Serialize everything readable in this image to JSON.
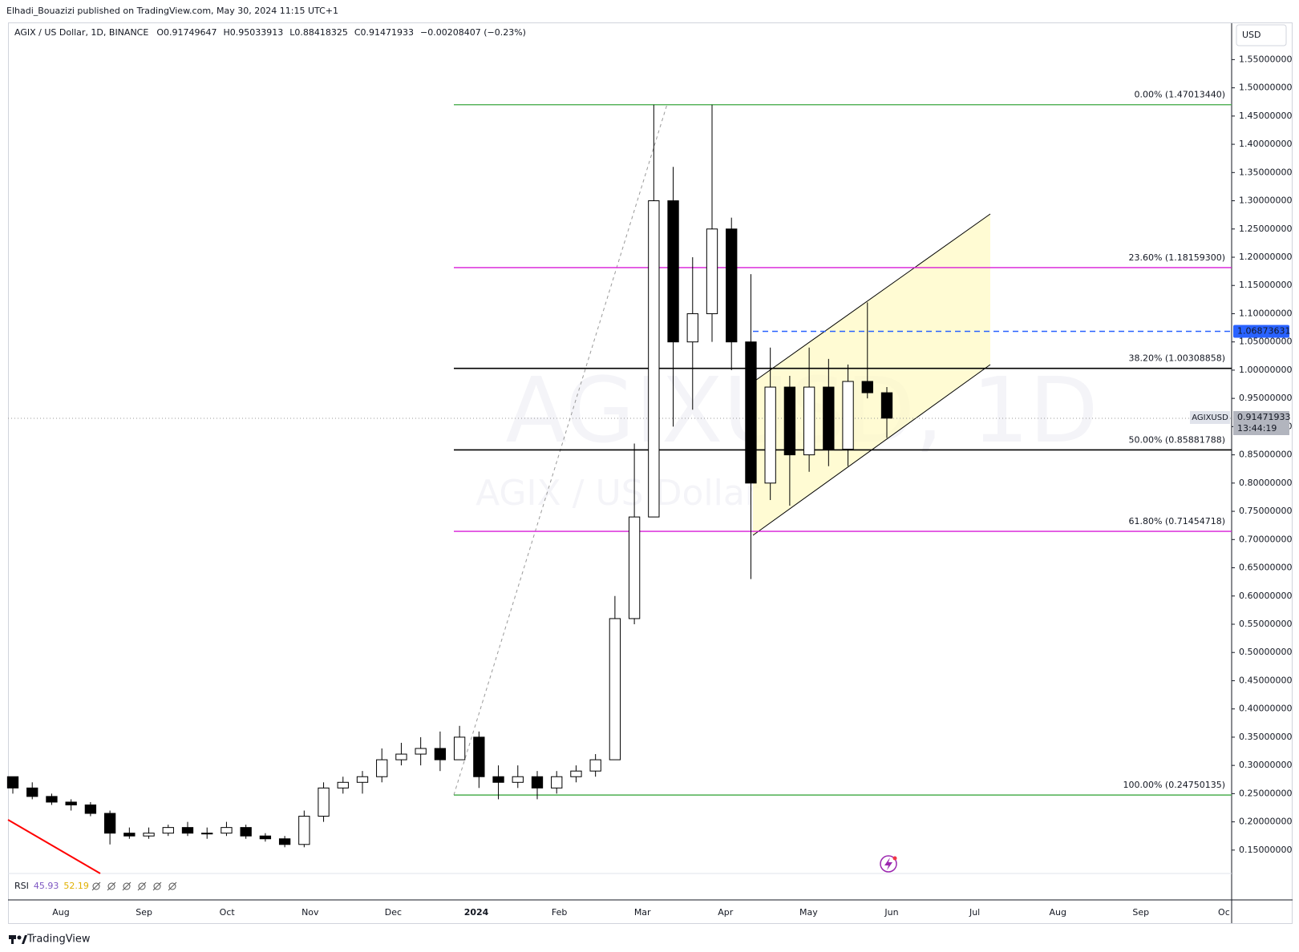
{
  "header": {
    "publisher": "Elhadi_Bouazizi published on TradingView.com, May 30, 2024 11:15 UTC+1",
    "footer": "TradingView"
  },
  "chart_data": {
    "type": "candlestick",
    "symbol": "AGIX / US Dollar, 1D, BINANCE",
    "legend": [
      {
        "label": "O",
        "value": 0.91749647
      },
      {
        "label": "H",
        "value": 0.95033913
      },
      {
        "label": "L",
        "value": 0.88418325
      },
      {
        "label": "C",
        "value": 0.91471933
      }
    ],
    "change": "−0.00208407 (−0.23%)",
    "watermark": "AGIXUSD, 1D",
    "watermark_sub": "AGIX / US Dollar",
    "currency": "USD",
    "up_color": "#ffffff",
    "down_color": "#000000",
    "open": [
      0.28,
      0.26,
      0.245,
      0.235,
      0.23,
      0.215,
      0.18,
      0.175,
      0.18,
      0.19,
      0.18,
      0.18,
      0.19,
      0.175,
      0.17,
      0.16,
      0.21,
      0.26,
      0.27,
      0.28,
      0.31,
      0.32,
      0.33,
      0.31,
      0.35,
      0.28,
      0.27,
      0.28,
      0.26,
      0.28,
      0.29,
      0.31,
      0.56,
      0.74,
      1.3,
      1.05,
      1.1,
      1.25,
      1.05,
      0.8,
      0.97,
      0.85,
      0.97,
      0.86,
      0.98,
      0.96
    ],
    "high": [
      0.28,
      0.27,
      0.25,
      0.24,
      0.235,
      0.22,
      0.19,
      0.19,
      0.195,
      0.2,
      0.19,
      0.2,
      0.195,
      0.18,
      0.175,
      0.22,
      0.27,
      0.28,
      0.29,
      0.33,
      0.34,
      0.35,
      0.36,
      0.37,
      0.36,
      0.3,
      0.3,
      0.29,
      0.29,
      0.3,
      0.32,
      0.6,
      0.87,
      1.47,
      1.36,
      1.2,
      1.47,
      1.27,
      1.17,
      1.04,
      0.99,
      1.04,
      1.02,
      1.01,
      1.12,
      0.97
    ],
    "low": [
      0.25,
      0.24,
      0.23,
      0.22,
      0.21,
      0.16,
      0.17,
      0.17,
      0.175,
      0.175,
      0.17,
      0.175,
      0.17,
      0.165,
      0.155,
      0.155,
      0.2,
      0.25,
      0.25,
      0.27,
      0.3,
      0.3,
      0.29,
      0.31,
      0.26,
      0.24,
      0.26,
      0.24,
      0.25,
      0.27,
      0.28,
      0.31,
      0.55,
      0.74,
      0.9,
      0.93,
      1.05,
      1.0,
      0.63,
      0.77,
      0.76,
      0.82,
      0.83,
      0.83,
      0.95,
      0.88
    ],
    "close": [
      0.26,
      0.245,
      0.235,
      0.23,
      0.215,
      0.18,
      0.175,
      0.18,
      0.19,
      0.18,
      0.18,
      0.19,
      0.175,
      0.17,
      0.16,
      0.21,
      0.26,
      0.27,
      0.28,
      0.31,
      0.32,
      0.33,
      0.31,
      0.35,
      0.28,
      0.27,
      0.28,
      0.26,
      0.28,
      0.29,
      0.31,
      0.56,
      0.74,
      1.3,
      1.05,
      1.1,
      1.25,
      1.05,
      0.8,
      0.97,
      0.85,
      0.97,
      0.86,
      0.98,
      0.96,
      0.915
    ],
    "time_labels": [
      "Aug",
      "Sep",
      "Oct",
      "Nov",
      "Dec",
      "2024",
      "Feb",
      "Mar",
      "Apr",
      "May",
      "Jun",
      "Jul",
      "Aug",
      "Sep",
      "Oc"
    ],
    "ylim": [
      0.1086,
      1.6144
    ],
    "yticks": [
      {
        "value": 0.15,
        "label": "0.15000000"
      },
      {
        "value": 0.2,
        "label": "0.20000000"
      },
      {
        "value": 0.25,
        "label": "0.25000000"
      },
      {
        "value": 0.3,
        "label": "0.30000000"
      },
      {
        "value": 0.35,
        "label": "0.35000000"
      },
      {
        "value": 0.4,
        "label": "0.40000000"
      },
      {
        "value": 0.45,
        "label": "0.45000000"
      },
      {
        "value": 0.5,
        "label": "0.50000000"
      },
      {
        "value": 0.55,
        "label": "0.55000000"
      },
      {
        "value": 0.6,
        "label": "0.60000000"
      },
      {
        "value": 0.65,
        "label": "0.65000000"
      },
      {
        "value": 0.7,
        "label": "0.70000000"
      },
      {
        "value": 0.75,
        "label": "0.75000000"
      },
      {
        "value": 0.8,
        "label": "0.80000000"
      },
      {
        "value": 0.85,
        "label": "0.85000000"
      },
      {
        "value": 0.9,
        "label": "0.90000000"
      },
      {
        "value": 0.95,
        "label": "0.95000000"
      },
      {
        "value": 1.0,
        "label": "1.00000000"
      },
      {
        "value": 1.05,
        "label": "1.05000000"
      },
      {
        "value": 1.1,
        "label": "1.10000000"
      },
      {
        "value": 1.15,
        "label": "1.15000000"
      },
      {
        "value": 1.2,
        "label": "1.20000000"
      },
      {
        "value": 1.25,
        "label": "1.25000000"
      },
      {
        "value": 1.3,
        "label": "1.30000000"
      },
      {
        "value": 1.35,
        "label": "1.35000000"
      },
      {
        "value": 1.4,
        "label": "1.40000000"
      },
      {
        "value": 1.45,
        "label": "1.45000000"
      },
      {
        "value": 1.5,
        "label": "1.50000000"
      },
      {
        "value": 1.55,
        "label": "1.55000000"
      }
    ],
    "fib_levels": [
      {
        "value": 1.4701344,
        "label": "0.00% (1.47013440)",
        "color": "#4caf50"
      },
      {
        "value": 1.181593,
        "label": "23.60% (1.18159300)",
        "color": "#d81bd8"
      },
      {
        "value": 1.00308858,
        "label": "38.20% (1.00308858)",
        "color": "#000000"
      },
      {
        "value": 0.85881788,
        "label": "50.00% (0.85881788)",
        "color": "#000000"
      },
      {
        "value": 0.71454718,
        "label": "61.80% (0.71454718)",
        "color": "#d81bd8"
      },
      {
        "value": 0.24750135,
        "label": "100.00% (0.24750135)",
        "color": "#4caf50"
      }
    ],
    "alert_line": {
      "value": 1.06873631,
      "color": "#2962ff"
    },
    "last_price": {
      "value": 0.91471933,
      "countdown": "13:44:19",
      "symbol_tag": "AGIXUSD"
    },
    "rsi": {
      "name": "RSI",
      "values": [
        45.93,
        52.19
      ],
      "colors": [
        "#7e57c2",
        "#e0b000"
      ]
    }
  }
}
